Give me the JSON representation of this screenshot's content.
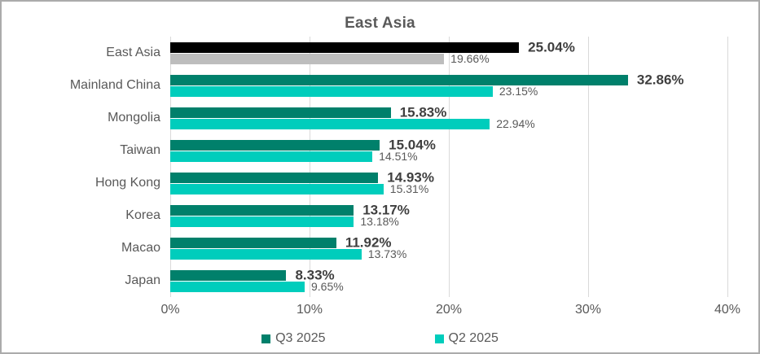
{
  "chart_data": {
    "type": "bar",
    "orientation": "horizontal",
    "title": "East Asia",
    "categories": [
      "East Asia",
      "Mainland China",
      "Mongolia",
      "Taiwan",
      "Hong Kong",
      "Korea",
      "Macao",
      "Japan"
    ],
    "series": [
      {
        "name": "Q3 2025",
        "color": "#00806b",
        "values": [
          25.04,
          32.86,
          15.83,
          15.04,
          14.93,
          13.17,
          11.92,
          8.33
        ],
        "labels": [
          "25.04%",
          "32.86%",
          "15.83%",
          "15.04%",
          "14.93%",
          "13.17%",
          "11.92%",
          "8.33%"
        ]
      },
      {
        "name": "Q2 2025",
        "color": "#00cdbc",
        "values": [
          19.66,
          23.15,
          22.94,
          14.51,
          15.31,
          13.18,
          13.73,
          9.65
        ],
        "labels": [
          "19.66%",
          "23.15%",
          "22.94%",
          "14.51%",
          "15.31%",
          "13.18%",
          "13.73%",
          "9.65%"
        ]
      }
    ],
    "highlight": {
      "category": "East Asia",
      "colors": [
        "#000000",
        "#bdbdbd"
      ]
    },
    "x_ticks": [
      "0%",
      "10%",
      "20%",
      "30%",
      "40%"
    ],
    "xlim": [
      0,
      40
    ],
    "grid": "vertical",
    "gridline_color": "#d9d9d9",
    "legend_position": "bottom"
  }
}
